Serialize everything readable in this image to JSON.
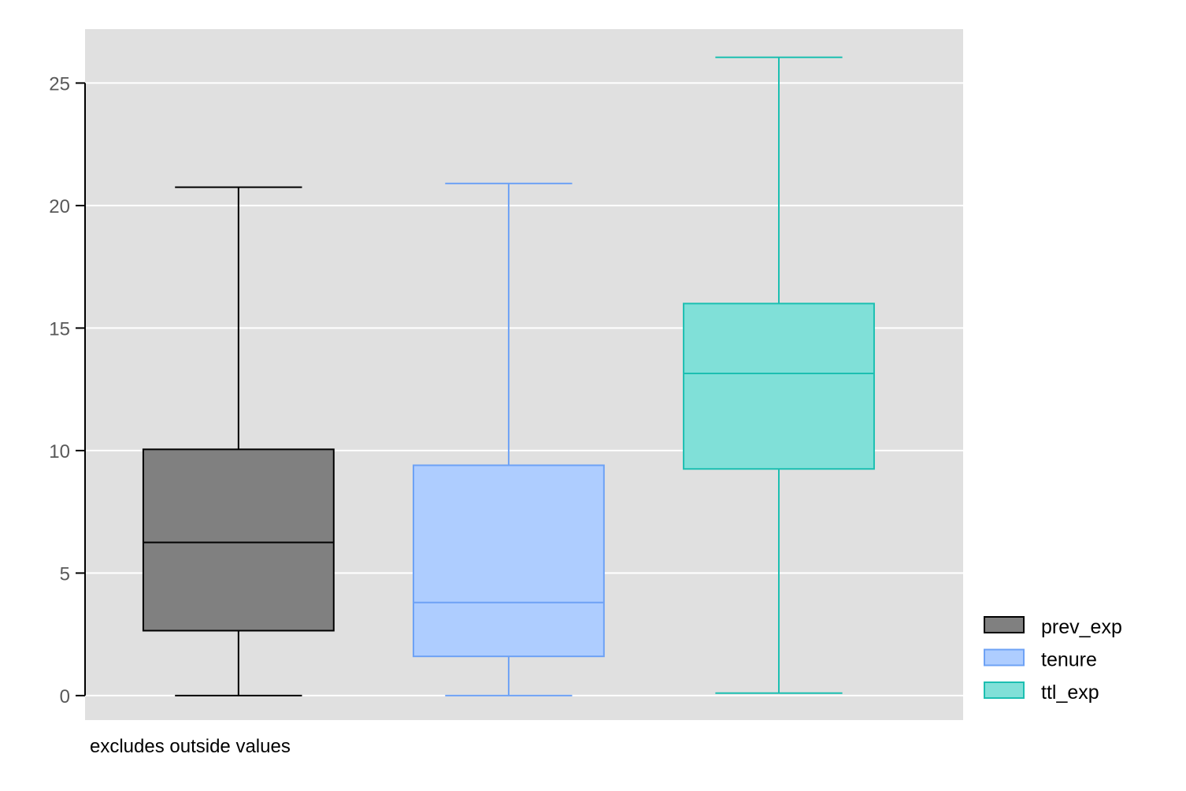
{
  "chart_data": {
    "type": "box",
    "title": "",
    "xlabel": "",
    "ylabel": "",
    "ylim": [
      -1,
      27.2
    ],
    "yticks": [
      0,
      5,
      10,
      15,
      20,
      25
    ],
    "ytick_labels": [
      "0",
      "5",
      "10",
      "15",
      "20",
      "25"
    ],
    "grid": "horizontal",
    "legend_position": "right-bottom",
    "note": "excludes outside values",
    "series": [
      {
        "name": "prev_exp",
        "min": 0,
        "q1": 2.65,
        "median": 6.25,
        "q3": 10.05,
        "max": 20.75,
        "fill": "#808080",
        "stroke": "#000000"
      },
      {
        "name": "tenure",
        "min": 0,
        "q1": 1.6,
        "median": 3.8,
        "q3": 9.4,
        "max": 20.9,
        "fill": "#aecdff",
        "stroke": "#6ea2f5"
      },
      {
        "name": "ttl_exp",
        "min": 0.1,
        "q1": 9.25,
        "median": 13.15,
        "q3": 16,
        "max": 26.05,
        "fill": "#80e0d8",
        "stroke": "#1cbfb1"
      }
    ],
    "colors": {
      "plot_background": "#e0e0e0",
      "grid": "#ffffff",
      "axis": "#000000"
    }
  }
}
